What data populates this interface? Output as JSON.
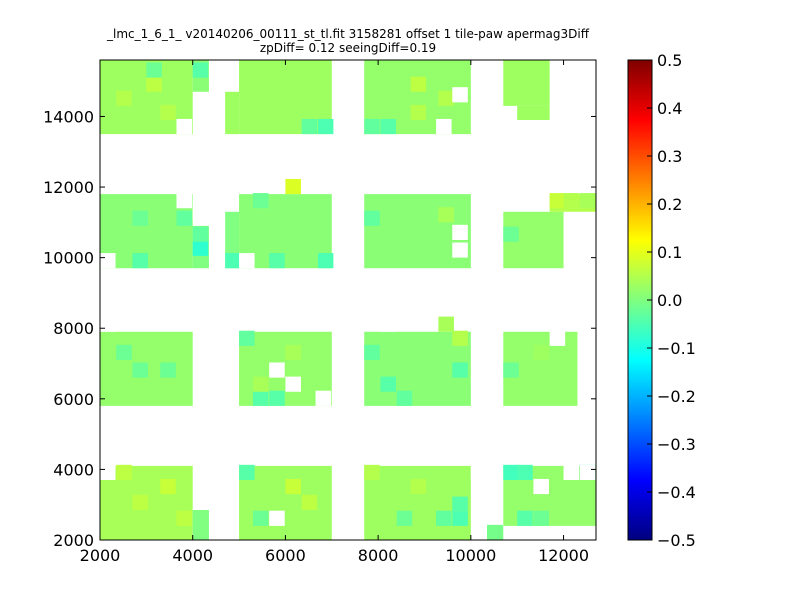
{
  "chart_data": {
    "type": "heatmap",
    "title_line1": "_lmc_1_6_1_ v20140206_00111_st_tl.fit 3158281 offset 1 tile-paw apermag3Diff",
    "title_line2": "zpDiff= 0.12 seeingDiff=0.19",
    "xlabel": "",
    "ylabel": "",
    "xlim": [
      2000,
      12700
    ],
    "ylim": [
      2000,
      15600
    ],
    "xticks": [
      2000,
      4000,
      6000,
      8000,
      10000,
      12000
    ],
    "xtick_labels": [
      "2000",
      "4000",
      "6000",
      "8000",
      "10000",
      "12000"
    ],
    "yticks": [
      2000,
      4000,
      6000,
      8000,
      10000,
      12000,
      14000
    ],
    "ytick_labels": [
      "2000",
      "4000",
      "6000",
      "8000",
      "10000",
      "12000",
      "14000"
    ],
    "colorbar": {
      "colormap": "jet",
      "vmin": -0.5,
      "vmax": 0.5,
      "ticks": [
        0.5,
        0.4,
        0.3,
        0.2,
        0.1,
        0.0,
        -0.1,
        -0.2,
        -0.3,
        -0.4,
        -0.5
      ],
      "tick_labels": [
        "0.5",
        "0.4",
        "0.3",
        "0.2",
        "0.1",
        "0.0",
        "−0.1",
        "−0.2",
        "−0.3",
        "−0.4",
        "−0.5"
      ]
    },
    "grid": false,
    "cell_size": [
      335,
      430
    ],
    "blocks": [
      {
        "x0": 2000,
        "x1": 4000,
        "y0": 13500,
        "y1": 15600,
        "value": 0.03
      },
      {
        "x0": 4000,
        "x1": 4350,
        "y0": 14700,
        "y1": 15600,
        "value": 0.01
      },
      {
        "x0": 4700,
        "x1": 5000,
        "y0": 13500,
        "y1": 14700,
        "value": 0.03
      },
      {
        "x0": 5000,
        "x1": 7000,
        "y0": 13500,
        "y1": 15600,
        "value": 0.03
      },
      {
        "x0": 7700,
        "x1": 10000,
        "y0": 13500,
        "y1": 15600,
        "value": 0.02
      },
      {
        "x0": 10700,
        "x1": 11700,
        "y0": 14300,
        "y1": 15600,
        "value": 0.03
      },
      {
        "x0": 11000,
        "x1": 11700,
        "y0": 13900,
        "y1": 14300,
        "value": 0.03
      },
      {
        "x0": 2000,
        "x1": 4000,
        "y0": 9700,
        "y1": 11800,
        "value": 0.01
      },
      {
        "x0": 4000,
        "x1": 4350,
        "y0": 9700,
        "y1": 10900,
        "value": 0.0
      },
      {
        "x0": 4700,
        "x1": 5000,
        "y0": 9700,
        "y1": 11300,
        "value": 0.0
      },
      {
        "x0": 5000,
        "x1": 7000,
        "y0": 9700,
        "y1": 11800,
        "value": 0.01
      },
      {
        "x0": 7700,
        "x1": 10000,
        "y0": 9700,
        "y1": 11800,
        "value": 0.01
      },
      {
        "x0": 10700,
        "x1": 12000,
        "y0": 9700,
        "y1": 11300,
        "value": 0.02
      },
      {
        "x0": 11700,
        "x1": 12700,
        "y0": 11300,
        "y1": 11800,
        "value": 0.05
      },
      {
        "x0": 2000,
        "x1": 4000,
        "y0": 5800,
        "y1": 7900,
        "value": 0.02
      },
      {
        "x0": 5000,
        "x1": 7000,
        "y0": 5800,
        "y1": 7900,
        "value": 0.02
      },
      {
        "x0": 7700,
        "x1": 10000,
        "y0": 5800,
        "y1": 7900,
        "value": 0.01
      },
      {
        "x0": 10700,
        "x1": 12300,
        "y0": 5800,
        "y1": 7900,
        "value": 0.02
      },
      {
        "x0": 2000,
        "x1": 4000,
        "y0": 2000,
        "y1": 4100,
        "value": 0.04
      },
      {
        "x0": 4000,
        "x1": 4350,
        "y0": 2000,
        "y1": 2850,
        "value": 0.0
      },
      {
        "x0": 5000,
        "x1": 7000,
        "y0": 2000,
        "y1": 4100,
        "value": 0.03
      },
      {
        "x0": 7700,
        "x1": 10000,
        "y0": 2000,
        "y1": 4100,
        "value": 0.03
      },
      {
        "x0": 10350,
        "x1": 10700,
        "y0": 2000,
        "y1": 2400,
        "value": 0.0
      },
      {
        "x0": 10700,
        "x1": 12700,
        "y0": 2400,
        "y1": 4100,
        "value": 0.02
      }
    ],
    "blank_cells": [
      [
        2000,
        3700
      ],
      [
        3650,
        13500
      ],
      [
        3650,
        11400
      ],
      [
        4000,
        11400
      ],
      [
        4000,
        11050
      ],
      [
        9600,
        14400
      ],
      [
        8050,
        8750
      ],
      [
        8050,
        7900
      ],
      [
        9600,
        10500
      ],
      [
        9600,
        10000
      ],
      [
        5650,
        6600
      ],
      [
        6000,
        6200
      ],
      [
        5650,
        2400
      ],
      [
        10000,
        3700
      ],
      [
        11350,
        3300
      ],
      [
        12000,
        3700
      ],
      [
        12350,
        3700
      ],
      [
        5000,
        9700
      ],
      [
        2000,
        9700
      ],
      [
        9250,
        13500
      ],
      [
        2000,
        7900
      ],
      [
        2000,
        4100
      ],
      [
        6650,
        5800
      ],
      [
        7350,
        5800
      ],
      [
        11700,
        7500
      ]
    ],
    "highlight_cells": [
      {
        "x": 2350,
        "y": 14300,
        "value": 0.05
      },
      {
        "x": 3000,
        "y": 14700,
        "value": 0.06
      },
      {
        "x": 3300,
        "y": 13900,
        "value": 0.05
      },
      {
        "x": 3000,
        "y": 15100,
        "value": -0.02
      },
      {
        "x": 4000,
        "y": 15100,
        "value": -0.04
      },
      {
        "x": 6350,
        "y": 13500,
        "value": -0.03
      },
      {
        "x": 6700,
        "y": 13500,
        "value": -0.05
      },
      {
        "x": 7700,
        "y": 13500,
        "value": -0.03
      },
      {
        "x": 8050,
        "y": 13500,
        "value": -0.04
      },
      {
        "x": 8700,
        "y": 13900,
        "value": 0.05
      },
      {
        "x": 9300,
        "y": 14300,
        "value": 0.05
      },
      {
        "x": 8700,
        "y": 14700,
        "value": 0.06
      },
      {
        "x": 6000,
        "y": 11800,
        "value": 0.09
      },
      {
        "x": 4000,
        "y": 10050,
        "value": -0.08
      },
      {
        "x": 4000,
        "y": 10450,
        "value": -0.03
      },
      {
        "x": 3650,
        "y": 10900,
        "value": -0.03
      },
      {
        "x": 4700,
        "y": 9700,
        "value": -0.05
      },
      {
        "x": 5650,
        "y": 9700,
        "value": -0.04
      },
      {
        "x": 6700,
        "y": 9700,
        "value": -0.05
      },
      {
        "x": 2700,
        "y": 9700,
        "value": -0.04
      },
      {
        "x": 2700,
        "y": 10900,
        "value": -0.02
      },
      {
        "x": 5300,
        "y": 11400,
        "value": -0.02
      },
      {
        "x": 7700,
        "y": 10900,
        "value": -0.03
      },
      {
        "x": 9300,
        "y": 11000,
        "value": 0.04
      },
      {
        "x": 11700,
        "y": 11400,
        "value": 0.07
      },
      {
        "x": 12000,
        "y": 11400,
        "value": 0.05
      },
      {
        "x": 12350,
        "y": 11400,
        "value": 0.04
      },
      {
        "x": 10700,
        "y": 10450,
        "value": -0.02
      },
      {
        "x": 2350,
        "y": 7100,
        "value": -0.02
      },
      {
        "x": 2700,
        "y": 6600,
        "value": -0.02
      },
      {
        "x": 3300,
        "y": 6600,
        "value": -0.02
      },
      {
        "x": 5300,
        "y": 5800,
        "value": -0.04
      },
      {
        "x": 5650,
        "y": 5800,
        "value": -0.04
      },
      {
        "x": 5000,
        "y": 7500,
        "value": -0.03
      },
      {
        "x": 5300,
        "y": 6200,
        "value": 0.04
      },
      {
        "x": 6000,
        "y": 7100,
        "value": 0.04
      },
      {
        "x": 7700,
        "y": 7100,
        "value": -0.03
      },
      {
        "x": 8050,
        "y": 6200,
        "value": -0.04
      },
      {
        "x": 8400,
        "y": 5800,
        "value": -0.03
      },
      {
        "x": 9600,
        "y": 6600,
        "value": -0.04
      },
      {
        "x": 9600,
        "y": 7500,
        "value": 0.05
      },
      {
        "x": 9300,
        "y": 7900,
        "value": 0.04
      },
      {
        "x": 10700,
        "y": 6600,
        "value": -0.02
      },
      {
        "x": 11350,
        "y": 7100,
        "value": 0.03
      },
      {
        "x": 2350,
        "y": 3700,
        "value": 0.06
      },
      {
        "x": 3300,
        "y": 3300,
        "value": 0.07
      },
      {
        "x": 2700,
        "y": 2850,
        "value": 0.06
      },
      {
        "x": 3650,
        "y": 2400,
        "value": 0.06
      },
      {
        "x": 5000,
        "y": 3700,
        "value": -0.04
      },
      {
        "x": 6000,
        "y": 3300,
        "value": 0.07
      },
      {
        "x": 6350,
        "y": 2850,
        "value": 0.06
      },
      {
        "x": 5300,
        "y": 2400,
        "value": -0.02
      },
      {
        "x": 7700,
        "y": 3700,
        "value": 0.05
      },
      {
        "x": 8400,
        "y": 2400,
        "value": -0.02
      },
      {
        "x": 8700,
        "y": 3300,
        "value": 0.05
      },
      {
        "x": 9250,
        "y": 2400,
        "value": -0.03
      },
      {
        "x": 9600,
        "y": 2400,
        "value": -0.05
      },
      {
        "x": 9600,
        "y": 2800,
        "value": -0.04
      },
      {
        "x": 10700,
        "y": 3700,
        "value": -0.06
      },
      {
        "x": 11000,
        "y": 3700,
        "value": -0.05
      },
      {
        "x": 11000,
        "y": 2400,
        "value": -0.04
      },
      {
        "x": 11350,
        "y": 2400,
        "value": -0.02
      },
      {
        "x": 12350,
        "y": 3700,
        "value": -0.05
      },
      {
        "x": 10350,
        "y": 2000,
        "value": -0.01
      }
    ]
  }
}
